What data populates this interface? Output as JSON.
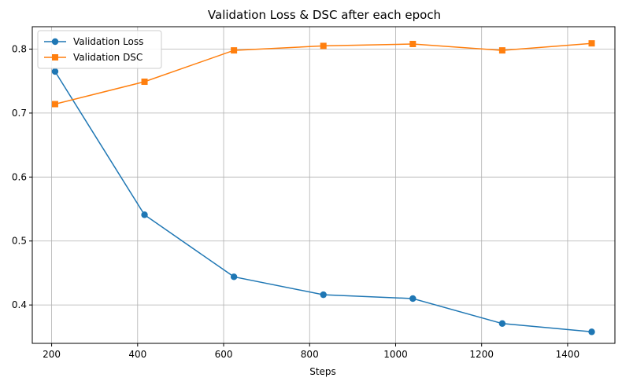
{
  "chart_data": {
    "type": "line",
    "title": "Validation Loss & DSC after each epoch",
    "xlabel": "Steps",
    "ylabel": "",
    "x": [
      208,
      416,
      624,
      832,
      1040,
      1248,
      1456
    ],
    "xlim": [
      155,
      1510
    ],
    "ylim": [
      0.34,
      0.835
    ],
    "xticks": [
      200,
      400,
      600,
      800,
      1000,
      1200,
      1400
    ],
    "xtick_labels": [
      "200",
      "400",
      "600",
      "800",
      "1000",
      "1200",
      "1400"
    ],
    "yticks": [
      0.4,
      0.5,
      0.6,
      0.7,
      0.8
    ],
    "ytick_labels": [
      "0.4",
      "0.5",
      "0.6",
      "0.7",
      "0.8"
    ],
    "grid": true,
    "legend_position": "top-left",
    "series": [
      {
        "name": "Validation Loss",
        "marker": "circle",
        "color": "#1f77b4",
        "values": [
          0.765,
          0.541,
          0.444,
          0.416,
          0.41,
          0.371,
          0.358
        ]
      },
      {
        "name": "Validation DSC",
        "marker": "square",
        "color": "#ff7f0e",
        "values": [
          0.714,
          0.749,
          0.798,
          0.805,
          0.808,
          0.798,
          0.809
        ]
      }
    ]
  }
}
